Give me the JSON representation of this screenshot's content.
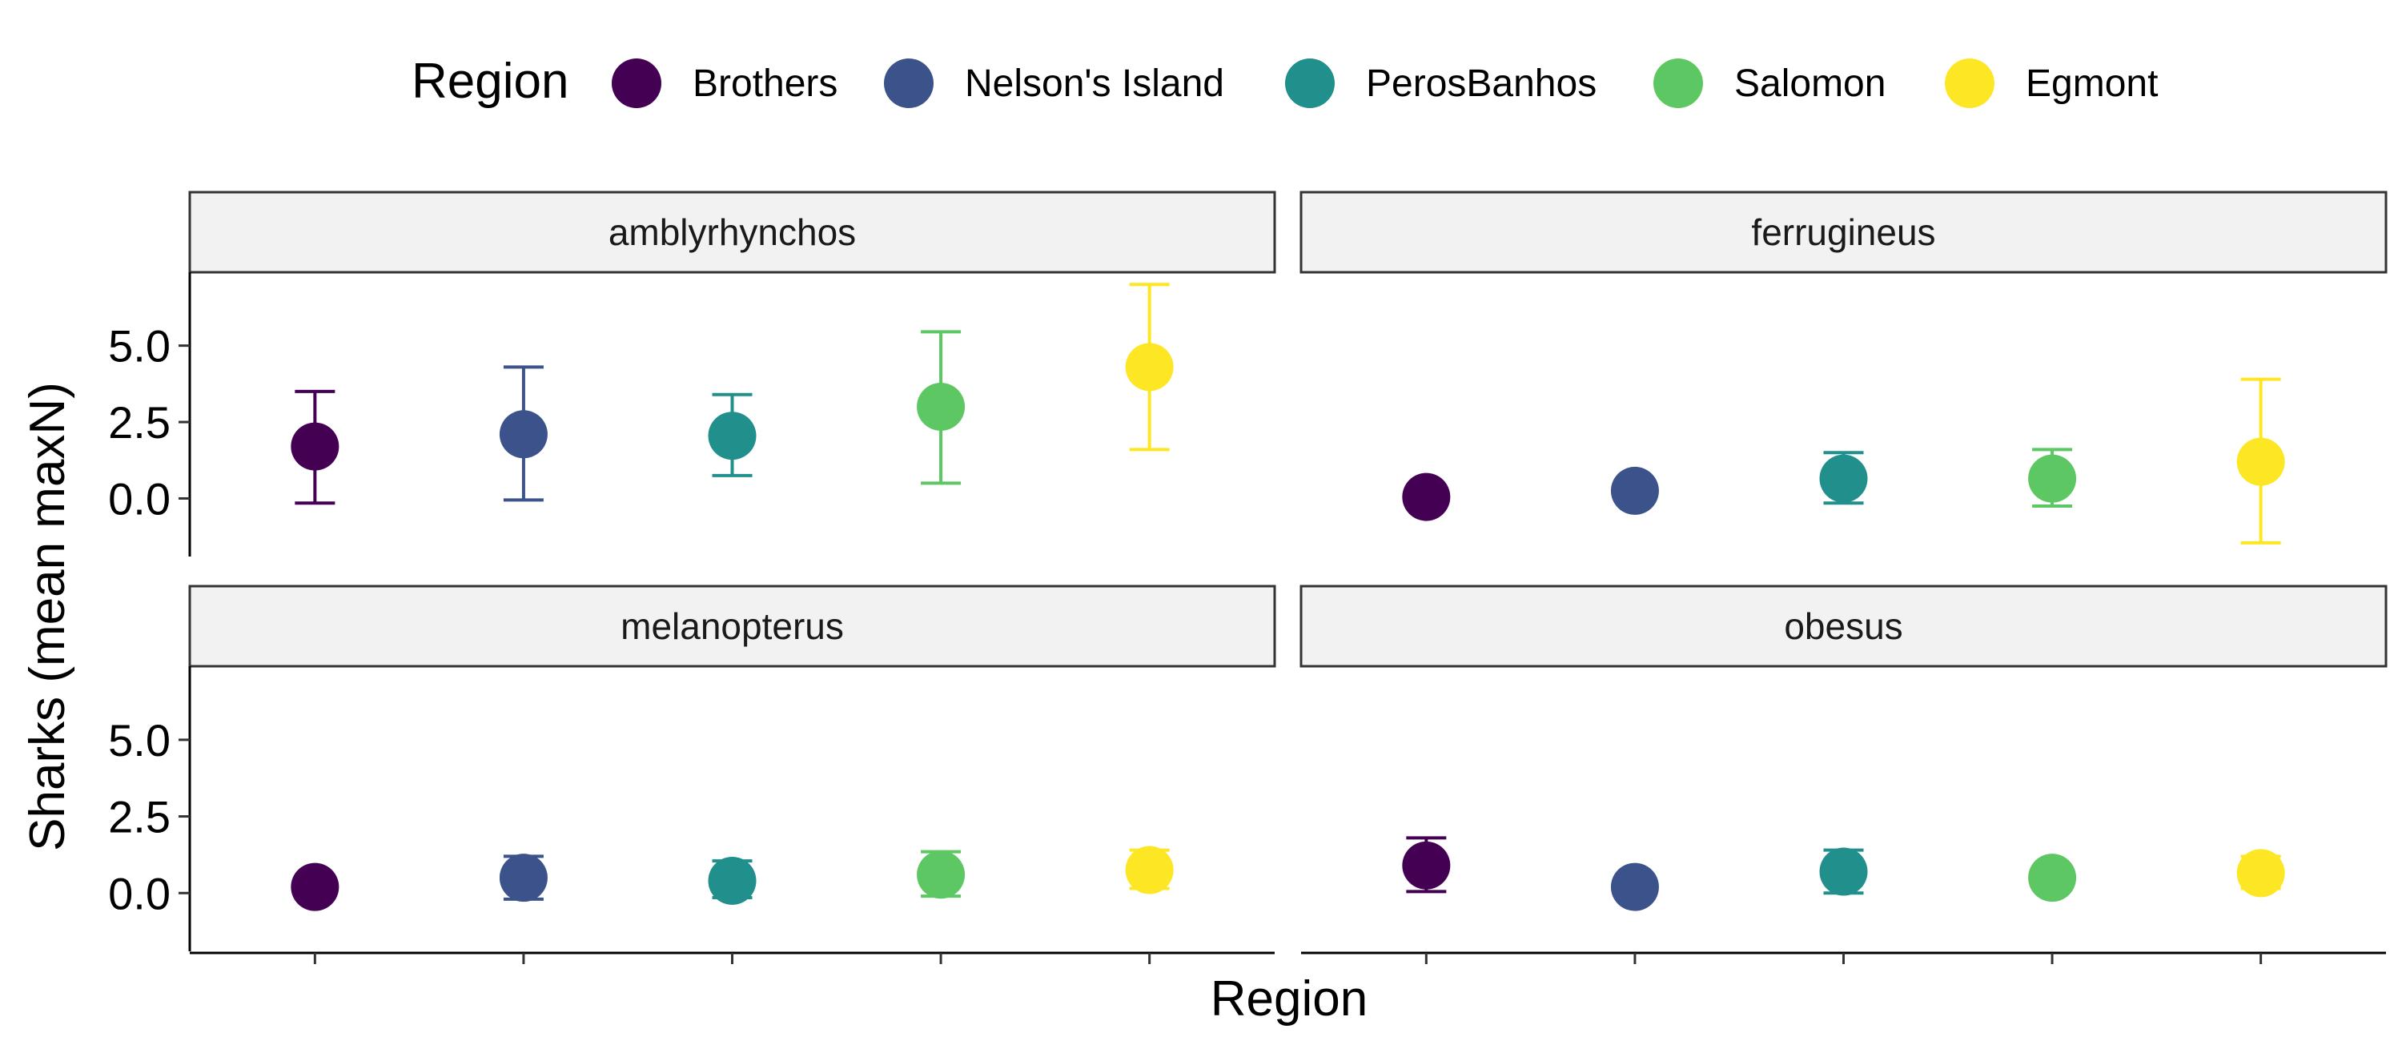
{
  "chart_data": {
    "type": "scatter",
    "subtype": "point-with-errorbars, faceted 2x2",
    "title": "",
    "xlabel": "Region",
    "ylabel": "Sharks (mean maxN)",
    "ylim": [
      -1.9,
      7.4
    ],
    "y_ticks": [
      0.0,
      2.5,
      5.0
    ],
    "y_tick_labels": [
      "0.0",
      "2.5",
      "5.0"
    ],
    "x_tick_labels_shown": false,
    "grid": false,
    "legend": {
      "title": "Region",
      "placement": "top",
      "entries": [
        {
          "label": "Brothers",
          "color": "#440154"
        },
        {
          "label": "Nelson's Island",
          "color": "#3B528B"
        },
        {
          "label": "PerosBanhos",
          "color": "#21908C"
        },
        {
          "label": "Salomon",
          "color": "#5DC863"
        },
        {
          "label": "Egmont",
          "color": "#FDE725"
        }
      ]
    },
    "categories": [
      "Brothers",
      "Nelson's Island",
      "PerosBanhos",
      "Salomon",
      "Egmont"
    ],
    "facets": [
      {
        "name": "amblyrhynchos",
        "mean": [
          1.7,
          2.1,
          2.05,
          3.0,
          4.3
        ],
        "lower": [
          -0.15,
          -0.05,
          0.75,
          0.5,
          1.6
        ],
        "upper": [
          3.5,
          4.3,
          3.4,
          5.45,
          7.0
        ]
      },
      {
        "name": "ferrugineus",
        "mean": [
          0.05,
          0.25,
          0.65,
          0.65,
          1.2
        ],
        "lower": [
          0.05,
          -0.05,
          -0.15,
          -0.25,
          -1.45
        ],
        "upper": [
          0.05,
          0.6,
          1.5,
          1.6,
          3.9
        ]
      },
      {
        "name": "melanopterus",
        "mean": [
          0.2,
          0.5,
          0.4,
          0.6,
          0.75
        ],
        "lower": [
          0.05,
          -0.2,
          -0.15,
          -0.1,
          0.15
        ],
        "upper": [
          0.4,
          1.2,
          1.05,
          1.35,
          1.4
        ]
      },
      {
        "name": "obesus",
        "mean": [
          0.9,
          0.2,
          0.7,
          0.5,
          0.65
        ],
        "lower": [
          0.05,
          0.2,
          0.0,
          0.2,
          0.15
        ],
        "upper": [
          1.8,
          0.2,
          1.4,
          0.75,
          1.2
        ]
      }
    ]
  }
}
